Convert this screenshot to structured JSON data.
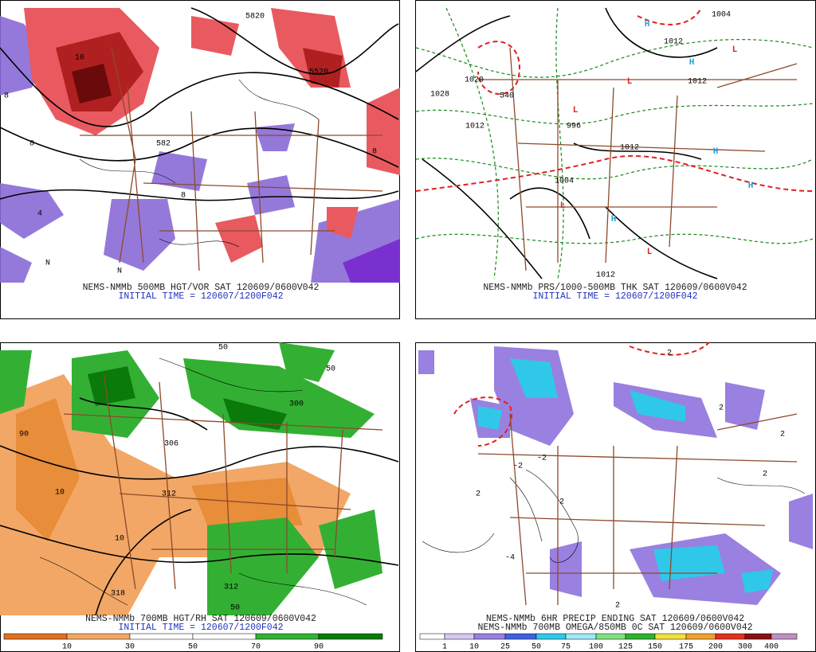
{
  "panels": [
    {
      "caption": "NEMS-NMMb 500MB HGT/VOR SAT 120609/0600V042",
      "initial": "INITIAL TIME = 120607/1200F042",
      "labels": [
        "5820",
        "5520",
        "16",
        "8",
        "8",
        "8",
        "4",
        "582",
        "N",
        "N",
        "8"
      ]
    },
    {
      "caption": "NEMS-NMMb PRS/1000-500MB THK SAT 120609/0600V042",
      "initial": "INITIAL TIME = 120607/1200F042",
      "labels": [
        "1020",
        "1028",
        "1012",
        "996",
        "1004",
        "1012",
        "1012",
        "1004",
        "1012",
        "1012",
        "540"
      ],
      "highs": [
        "H",
        "H",
        "H",
        "H",
        "H"
      ],
      "lows": [
        "L",
        "L",
        "L",
        "L",
        "L"
      ]
    },
    {
      "caption": "NEMS-NMMb 700MB HGT/RH SAT 120609/0600V042",
      "initial": "INITIAL TIME = 120607/1200F042",
      "labels": [
        "50",
        "306",
        "300",
        "90",
        "10",
        "312",
        "10",
        "318",
        "50",
        "312",
        "50"
      ],
      "colorbar": [
        10,
        30,
        50,
        70,
        90
      ]
    },
    {
      "caption": "NEMS-NMMb 6HR PRECIP ENDING SAT 120609/0600V042",
      "caption2": "NEMS-NMMb 700MB OMEGA/850MB 0C SAT 120609/0600V042",
      "labels": [
        "2",
        "2",
        "2",
        "2",
        "-2",
        "2",
        "-2",
        "2",
        "2",
        "-4"
      ],
      "colorbar": [
        1,
        10,
        25,
        50,
        75,
        100,
        125,
        150,
        175,
        200,
        300,
        400
      ]
    }
  ]
}
